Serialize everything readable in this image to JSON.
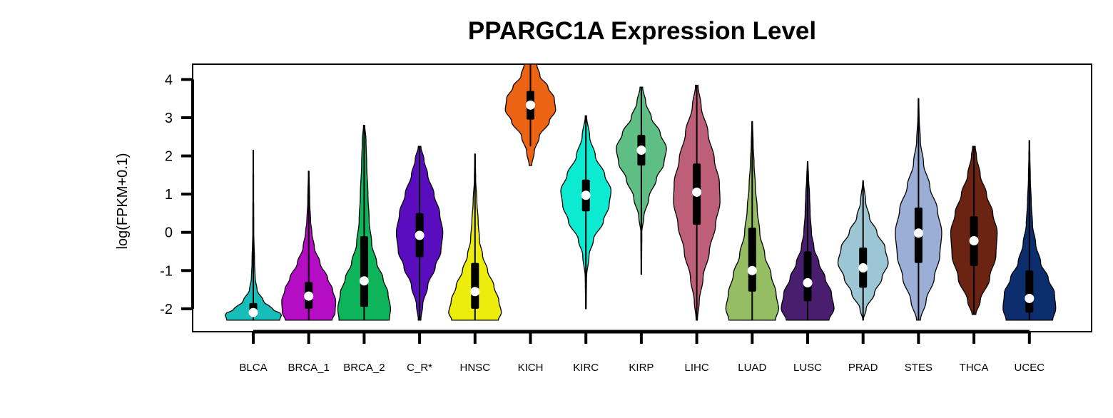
{
  "chart_data": {
    "type": "violin",
    "title": "PPARGC1A Expression Level",
    "xlabel": "",
    "ylabel": "log(FPKM+0.1)",
    "ylim": [
      -2.6,
      4.4
    ],
    "yticks": [
      4,
      3,
      2,
      1,
      0,
      -1,
      -2
    ],
    "grid": false,
    "categories": [
      "BLCA",
      "BRCA_1",
      "BRCA_2",
      "C_R*",
      "HNSC",
      "KICH",
      "KIRC",
      "KIRP",
      "LIHC",
      "LUAD",
      "LUSC",
      "PRAD",
      "STES",
      "THCA",
      "UCEC"
    ],
    "series": [
      {
        "category": "BLCA",
        "color": "#17BDB8",
        "min": -2.3,
        "max": 2.15,
        "q1": -2.2,
        "median": -2.1,
        "q3": -1.85,
        "whisker_low": -2.3,
        "whisker_high": 2.15,
        "density": [
          [
            -2.3,
            0.42
          ],
          [
            -2.15,
            0.45
          ],
          [
            -2.0,
            0.3
          ],
          [
            -1.8,
            0.16
          ],
          [
            -1.5,
            0.06
          ],
          [
            -1.2,
            0.03
          ],
          [
            -0.8,
            0.02
          ],
          [
            0.0,
            0.008
          ],
          [
            1.0,
            0.006
          ],
          [
            2.15,
            0.004
          ]
        ]
      },
      {
        "category": "BRCA_1",
        "color": "#B40DC3",
        "min": -2.3,
        "max": 1.6,
        "q1": -2.0,
        "median": -1.67,
        "q3": -1.3,
        "whisker_low": -2.3,
        "whisker_high": 1.6,
        "density": [
          [
            -2.3,
            0.37
          ],
          [
            -2.1,
            0.42
          ],
          [
            -1.8,
            0.43
          ],
          [
            -1.5,
            0.38
          ],
          [
            -1.2,
            0.3
          ],
          [
            -0.8,
            0.18
          ],
          [
            -0.4,
            0.09
          ],
          [
            0.0,
            0.05
          ],
          [
            0.3,
            0.03
          ],
          [
            0.8,
            0.015
          ],
          [
            1.6,
            0.005
          ]
        ]
      },
      {
        "category": "BRCA_2",
        "color": "#0DB45A",
        "min": -2.3,
        "max": 2.8,
        "q1": -1.95,
        "median": -1.27,
        "q3": -0.1,
        "whisker_low": -2.3,
        "whisker_high": 2.8,
        "density": [
          [
            -2.3,
            0.4
          ],
          [
            -2.0,
            0.42
          ],
          [
            -1.6,
            0.38
          ],
          [
            -1.2,
            0.3
          ],
          [
            -0.8,
            0.2
          ],
          [
            -0.3,
            0.12
          ],
          [
            0.3,
            0.08
          ],
          [
            1.0,
            0.06
          ],
          [
            1.8,
            0.04
          ],
          [
            2.4,
            0.03
          ],
          [
            2.8,
            0.01
          ]
        ]
      },
      {
        "category": "C_R*",
        "color": "#5A0DBE",
        "min": -2.3,
        "max": 2.25,
        "q1": -0.65,
        "median": -0.08,
        "q3": 0.5,
        "whisker_low": -2.3,
        "whisker_high": 2.25,
        "density": [
          [
            -2.3,
            0.02
          ],
          [
            -1.9,
            0.05
          ],
          [
            -1.4,
            0.13
          ],
          [
            -0.9,
            0.25
          ],
          [
            -0.5,
            0.34
          ],
          [
            0.0,
            0.37
          ],
          [
            0.5,
            0.32
          ],
          [
            1.0,
            0.23
          ],
          [
            1.5,
            0.13
          ],
          [
            1.9,
            0.07
          ],
          [
            2.25,
            0.02
          ]
        ]
      },
      {
        "category": "HNSC",
        "color": "#EDED0C",
        "min": -2.3,
        "max": 2.05,
        "q1": -2.0,
        "median": -1.55,
        "q3": -0.8,
        "whisker_low": -2.3,
        "whisker_high": 2.05,
        "density": [
          [
            -2.3,
            0.37
          ],
          [
            -2.1,
            0.42
          ],
          [
            -1.8,
            0.38
          ],
          [
            -1.4,
            0.3
          ],
          [
            -1.0,
            0.2
          ],
          [
            -0.6,
            0.12
          ],
          [
            -0.2,
            0.07
          ],
          [
            0.3,
            0.05
          ],
          [
            0.8,
            0.03
          ],
          [
            1.4,
            0.01
          ],
          [
            2.05,
            0.004
          ]
        ]
      },
      {
        "category": "KICH",
        "color": "#EC6413",
        "min": 1.75,
        "max": 4.4,
        "q1": 2.95,
        "median": 3.33,
        "q3": 3.7,
        "whisker_low": 2.25,
        "whisker_high": 4.4,
        "density": [
          [
            1.75,
            0.02
          ],
          [
            2.1,
            0.06
          ],
          [
            2.5,
            0.14
          ],
          [
            2.9,
            0.3
          ],
          [
            3.2,
            0.4
          ],
          [
            3.5,
            0.38
          ],
          [
            3.8,
            0.28
          ],
          [
            4.1,
            0.15
          ],
          [
            4.4,
            0.1
          ]
        ]
      },
      {
        "category": "KIRC",
        "color": "#0DEAD2",
        "min": -2.0,
        "max": 3.05,
        "q1": 0.55,
        "median": 0.97,
        "q3": 1.38,
        "whisker_low": -2.0,
        "whisker_high": 3.05,
        "density": [
          [
            -2.0,
            0.005
          ],
          [
            -1.2,
            0.01
          ],
          [
            -0.6,
            0.05
          ],
          [
            -0.2,
            0.12
          ],
          [
            0.3,
            0.28
          ],
          [
            0.7,
            0.37
          ],
          [
            1.1,
            0.4
          ],
          [
            1.5,
            0.3
          ],
          [
            2.0,
            0.15
          ],
          [
            2.5,
            0.06
          ],
          [
            3.05,
            0.01
          ]
        ]
      },
      {
        "category": "KIRP",
        "color": "#5FBE84",
        "min": -1.1,
        "max": 3.8,
        "q1": 1.75,
        "median": 2.15,
        "q3": 2.55,
        "whisker_low": -1.1,
        "whisker_high": 3.8,
        "density": [
          [
            -1.1,
            0.004
          ],
          [
            0.0,
            0.008
          ],
          [
            0.4,
            0.04
          ],
          [
            0.9,
            0.12
          ],
          [
            1.4,
            0.24
          ],
          [
            1.8,
            0.36
          ],
          [
            2.2,
            0.4
          ],
          [
            2.6,
            0.3
          ],
          [
            3.0,
            0.16
          ],
          [
            3.4,
            0.07
          ],
          [
            3.8,
            0.02
          ]
        ]
      },
      {
        "category": "LIHC",
        "color": "#BE5F7A",
        "min": -2.3,
        "max": 3.85,
        "q1": 0.2,
        "median": 1.05,
        "q3": 1.8,
        "whisker_low": -2.3,
        "whisker_high": 3.85,
        "density": [
          [
            -2.3,
            0.01
          ],
          [
            -1.8,
            0.04
          ],
          [
            -1.2,
            0.1
          ],
          [
            -0.5,
            0.2
          ],
          [
            0.2,
            0.3
          ],
          [
            0.8,
            0.37
          ],
          [
            1.3,
            0.36
          ],
          [
            1.9,
            0.28
          ],
          [
            2.6,
            0.18
          ],
          [
            3.3,
            0.07
          ],
          [
            3.85,
            0.02
          ]
        ]
      },
      {
        "category": "LUAD",
        "color": "#95BE64",
        "min": -2.3,
        "max": 2.9,
        "q1": -1.55,
        "median": -1.0,
        "q3": 0.12,
        "whisker_low": -2.3,
        "whisker_high": 2.9,
        "density": [
          [
            -2.3,
            0.37
          ],
          [
            -2.0,
            0.42
          ],
          [
            -1.6,
            0.38
          ],
          [
            -1.1,
            0.3
          ],
          [
            -0.6,
            0.2
          ],
          [
            0.0,
            0.12
          ],
          [
            0.6,
            0.08
          ],
          [
            1.2,
            0.05
          ],
          [
            1.8,
            0.03
          ],
          [
            2.3,
            0.015
          ],
          [
            2.9,
            0.005
          ]
        ]
      },
      {
        "category": "LUSC",
        "color": "#4A1E6E",
        "min": -2.3,
        "max": 1.85,
        "q1": -1.8,
        "median": -1.32,
        "q3": -0.5,
        "whisker_low": -2.3,
        "whisker_high": 1.85,
        "density": [
          [
            -2.3,
            0.34
          ],
          [
            -2.0,
            0.42
          ],
          [
            -1.6,
            0.38
          ],
          [
            -1.2,
            0.28
          ],
          [
            -0.8,
            0.18
          ],
          [
            -0.4,
            0.1
          ],
          [
            0.0,
            0.06
          ],
          [
            0.5,
            0.04
          ],
          [
            1.0,
            0.03
          ],
          [
            1.4,
            0.015
          ],
          [
            1.85,
            0.005
          ]
        ]
      },
      {
        "category": "PRAD",
        "color": "#9CC6D4",
        "min": -2.3,
        "max": 1.35,
        "q1": -1.45,
        "median": -0.93,
        "q3": -0.4,
        "whisker_low": -2.3,
        "whisker_high": 1.35,
        "density": [
          [
            -2.3,
            0.004
          ],
          [
            -2.0,
            0.05
          ],
          [
            -1.6,
            0.18
          ],
          [
            -1.2,
            0.3
          ],
          [
            -0.8,
            0.4
          ],
          [
            -0.4,
            0.35
          ],
          [
            0.0,
            0.22
          ],
          [
            0.4,
            0.1
          ],
          [
            0.8,
            0.04
          ],
          [
            1.35,
            0.005
          ]
        ]
      },
      {
        "category": "STES",
        "color": "#9AAED6",
        "min": -2.3,
        "max": 3.5,
        "q1": -0.8,
        "median": -0.02,
        "q3": 0.65,
        "whisker_low": -2.3,
        "whisker_high": 3.5,
        "density": [
          [
            -2.3,
            0.03
          ],
          [
            -1.8,
            0.12
          ],
          [
            -1.2,
            0.25
          ],
          [
            -0.6,
            0.34
          ],
          [
            0.0,
            0.37
          ],
          [
            0.6,
            0.3
          ],
          [
            1.2,
            0.18
          ],
          [
            1.8,
            0.08
          ],
          [
            2.4,
            0.03
          ],
          [
            3.0,
            0.01
          ],
          [
            3.5,
            0.004
          ]
        ]
      },
      {
        "category": "THCA",
        "color": "#6B2412",
        "min": -2.15,
        "max": 2.25,
        "q1": -0.88,
        "median": -0.22,
        "q3": 0.42,
        "whisker_low": -2.15,
        "whisker_high": 2.25,
        "density": [
          [
            -2.15,
            0.03
          ],
          [
            -1.8,
            0.1
          ],
          [
            -1.2,
            0.25
          ],
          [
            -0.6,
            0.35
          ],
          [
            0.0,
            0.37
          ],
          [
            0.5,
            0.3
          ],
          [
            1.0,
            0.2
          ],
          [
            1.5,
            0.1
          ],
          [
            2.0,
            0.04
          ],
          [
            2.25,
            0.02
          ]
        ]
      },
      {
        "category": "UCEC",
        "color": "#0D2E6E",
        "min": -2.3,
        "max": 2.4,
        "q1": -2.1,
        "median": -1.73,
        "q3": -1.0,
        "whisker_low": -2.3,
        "whisker_high": 2.4,
        "density": [
          [
            -2.3,
            0.37
          ],
          [
            -2.0,
            0.42
          ],
          [
            -1.6,
            0.4
          ],
          [
            -1.2,
            0.3
          ],
          [
            -0.8,
            0.18
          ],
          [
            -0.3,
            0.1
          ],
          [
            0.2,
            0.05
          ],
          [
            0.8,
            0.03
          ],
          [
            1.4,
            0.015
          ],
          [
            2.0,
            0.008
          ],
          [
            2.4,
            0.004
          ]
        ]
      }
    ]
  }
}
